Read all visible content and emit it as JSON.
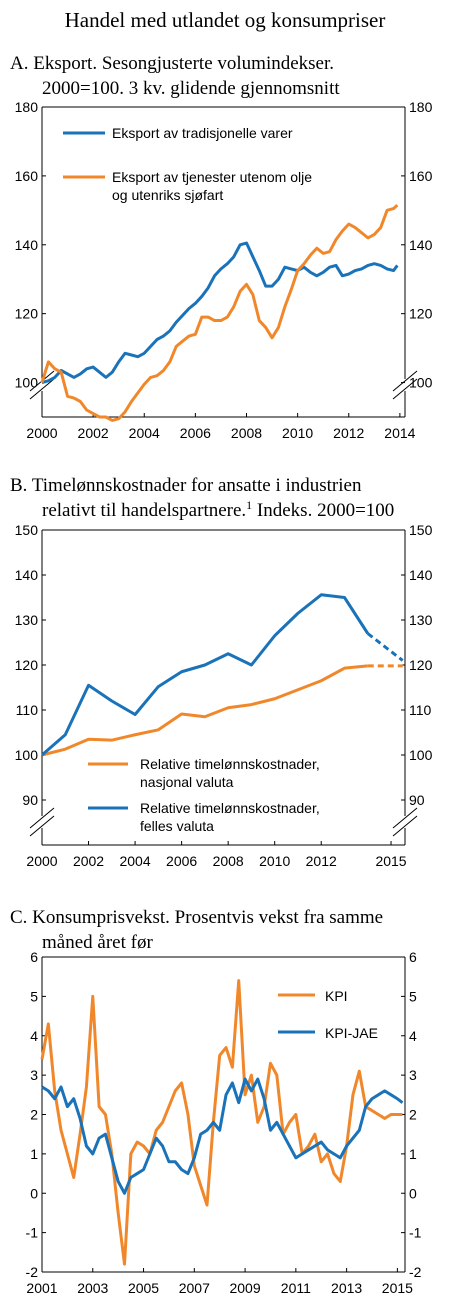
{
  "figure_title": "Handel med utlandet og konsumpriser",
  "colors": {
    "blue": "#1a72b9",
    "orange": "#f0882b"
  },
  "chart_data": [
    {
      "type": "line",
      "title_lines": [
        "A.  Eksport. Sesongjusterte volumindekser.",
        "2000=100. 3 kv. glidende gjennomsnitt"
      ],
      "xlim": [
        2000,
        2014.2
      ],
      "ylim": [
        90,
        180
      ],
      "x_ticks": [
        "2000",
        "2002",
        "2004",
        "2006",
        "2008",
        "2010",
        "2012",
        "2014"
      ],
      "y_ticks": [
        "100",
        "120",
        "140",
        "160",
        "180"
      ],
      "series": [
        {
          "name": "Eksport av tradisjonelle varer",
          "color": "#1a72b9",
          "x": [
            2000.0,
            2000.25,
            2000.5,
            2000.75,
            2001.0,
            2001.25,
            2001.5,
            2001.75,
            2002.0,
            2002.25,
            2002.5,
            2002.75,
            2003.0,
            2003.25,
            2003.5,
            2003.75,
            2004.0,
            2004.25,
            2004.5,
            2004.75,
            2005.0,
            2005.25,
            2005.5,
            2005.75,
            2006.0,
            2006.25,
            2006.5,
            2006.75,
            2007.0,
            2007.25,
            2007.5,
            2007.75,
            2008.0,
            2008.25,
            2008.5,
            2008.75,
            2009.0,
            2009.25,
            2009.5,
            2009.75,
            2010.0,
            2010.25,
            2010.5,
            2010.75,
            2011.0,
            2011.25,
            2011.5,
            2011.75,
            2012.0,
            2012.25,
            2012.5,
            2012.75,
            2013.0,
            2013.25,
            2013.5,
            2013.75,
            2013.9
          ],
          "y": [
            100,
            100.5,
            101.5,
            103.5,
            102.5,
            101.5,
            102.5,
            104,
            104.5,
            103,
            101.5,
            103,
            106,
            108.5,
            108,
            107.5,
            108.5,
            110.5,
            112.5,
            113.5,
            115,
            117.5,
            119.5,
            121.5,
            123,
            125,
            127.5,
            131,
            133,
            134.5,
            136.5,
            140,
            140.5,
            136.5,
            132.5,
            128,
            128,
            130,
            133.5,
            133,
            132.5,
            133.5,
            132,
            131,
            132,
            133.5,
            134,
            131,
            131.5,
            132.5,
            133,
            134,
            134.5,
            134,
            133,
            132.5,
            134
          ]
        },
        {
          "name": "Eksport av tjenester utenom olje og utenriks sjøfart",
          "label_lines": [
            "Eksport av tjenester utenom olje",
            "og utenriks sjøfart"
          ],
          "color": "#f0882b",
          "x": [
            2000.0,
            2000.25,
            2000.5,
            2000.75,
            2001.0,
            2001.25,
            2001.5,
            2001.75,
            2002.0,
            2002.25,
            2002.5,
            2002.75,
            2003.0,
            2003.25,
            2003.5,
            2003.75,
            2004.0,
            2004.25,
            2004.5,
            2004.75,
            2005.0,
            2005.25,
            2005.5,
            2005.75,
            2006.0,
            2006.25,
            2006.5,
            2006.75,
            2007.0,
            2007.25,
            2007.5,
            2007.75,
            2008.0,
            2008.25,
            2008.5,
            2008.75,
            2009.0,
            2009.25,
            2009.5,
            2009.75,
            2010.0,
            2010.25,
            2010.5,
            2010.75,
            2011.0,
            2011.25,
            2011.5,
            2011.75,
            2012.0,
            2012.25,
            2012.5,
            2012.75,
            2013.0,
            2013.25,
            2013.5,
            2013.75,
            2013.9
          ],
          "y": [
            100,
            106,
            104,
            103,
            96,
            95.5,
            94.5,
            92,
            91,
            90,
            90,
            89,
            89.5,
            91.5,
            94.5,
            97,
            99.5,
            101.5,
            102,
            103.5,
            106,
            110.5,
            112,
            113.5,
            114,
            119,
            119,
            118,
            118,
            119,
            122,
            126.5,
            128.5,
            125.5,
            118,
            116,
            113,
            116,
            122,
            127,
            132.5,
            134.5,
            137,
            139,
            137.5,
            138,
            141.5,
            144,
            146,
            145,
            143.5,
            142,
            143,
            145,
            150,
            150.5,
            151.5
          ]
        }
      ]
    },
    {
      "type": "line",
      "title_lines": [
        "B.  Timelønnskostnader for ansatte i industrien",
        "relativt til handelspartnere."
      ],
      "title_footnote": "1",
      "title_tail": " Indeks. 2000=100",
      "xlim": [
        2000,
        2015.6
      ],
      "ylim": [
        80,
        150
      ],
      "x_ticks": [
        "2000",
        "2002",
        "2004",
        "2006",
        "2008",
        "2010",
        "2012",
        "2015"
      ],
      "y_ticks": [
        "90",
        "100",
        "110",
        "120",
        "130",
        "140",
        "150"
      ],
      "series": [
        {
          "name": "Relative timelønnskostnader, nasjonal valuta",
          "label_lines": [
            "Relative timelønnskostnader,",
            "nasjonal valuta"
          ],
          "color": "#f0882b",
          "x": [
            2000,
            2001,
            2002,
            2003,
            2004,
            2005,
            2006,
            2007,
            2008,
            2009,
            2010,
            2011,
            2012,
            2013,
            2014,
            2014.5,
            2015.5
          ],
          "y": [
            100,
            101.3,
            103.5,
            103.3,
            104.5,
            105.6,
            109.1,
            108.5,
            110.5,
            111.2,
            112.5,
            114.5,
            116.5,
            119.3,
            119.8,
            119.8,
            119.8
          ],
          "forecast_from_index": 14
        },
        {
          "name": "Relative timelønnskostnader, felles valuta",
          "label_lines": [
            "Relative timelønnskostnader,",
            "felles valuta"
          ],
          "color": "#1a72b9",
          "x": [
            2000,
            2001,
            2002,
            2003,
            2004,
            2005,
            2006,
            2007,
            2008,
            2009,
            2010,
            2011,
            2012,
            2013,
            2014,
            2015.5
          ],
          "y": [
            100,
            104.5,
            115.5,
            112,
            109,
            115.2,
            118.5,
            120,
            122.5,
            120,
            126.5,
            131.5,
            135.6,
            135,
            127,
            121
          ],
          "forecast_from_index": 14
        }
      ]
    },
    {
      "type": "line",
      "title_lines": [
        "C.  Konsumprisvekst. Prosentvis vekst fra samme",
        "måned året før"
      ],
      "xlim": [
        2001,
        2015.3
      ],
      "ylim": [
        -2,
        6
      ],
      "x_ticks": [
        "2001",
        "2003",
        "2005",
        "2007",
        "2009",
        "2011",
        "2013",
        "2015"
      ],
      "y_ticks": [
        "-2",
        "-1",
        "0",
        "1",
        "2",
        "3",
        "4",
        "5",
        "6"
      ],
      "series": [
        {
          "name": "KPI",
          "color": "#f0882b",
          "x": [
            2001.0,
            2001.25,
            2001.5,
            2001.75,
            2002.0,
            2002.25,
            2002.5,
            2002.75,
            2003.0,
            2003.25,
            2003.5,
            2003.75,
            2004.0,
            2004.25,
            2004.5,
            2004.75,
            2005.0,
            2005.25,
            2005.5,
            2005.75,
            2006.0,
            2006.25,
            2006.5,
            2006.75,
            2007.0,
            2007.25,
            2007.5,
            2007.75,
            2008.0,
            2008.25,
            2008.5,
            2008.75,
            2009.0,
            2009.25,
            2009.5,
            2009.75,
            2010.0,
            2010.25,
            2010.5,
            2010.75,
            2011.0,
            2011.25,
            2011.5,
            2011.75,
            2012.0,
            2012.25,
            2012.5,
            2012.75,
            2013.0,
            2013.25,
            2013.5,
            2013.75,
            2014.0,
            2014.25,
            2014.5,
            2014.75,
            2015.0,
            2015.2
          ],
          "y": [
            3.4,
            4.3,
            2.6,
            1.6,
            1.0,
            0.4,
            1.5,
            2.7,
            5.0,
            2.2,
            2.0,
            1.0,
            -0.5,
            -1.8,
            1.0,
            1.3,
            1.2,
            1.0,
            1.6,
            1.8,
            2.2,
            2.6,
            2.8,
            2.0,
            0.7,
            0.2,
            -0.3,
            1.8,
            3.5,
            3.7,
            3.2,
            5.4,
            2.5,
            3.0,
            1.8,
            2.2,
            3.3,
            3.0,
            1.5,
            1.8,
            2.0,
            1.0,
            1.2,
            1.5,
            0.8,
            1.0,
            0.5,
            0.3,
            1.2,
            2.5,
            3.1,
            2.2,
            2.1,
            2.0,
            1.9,
            2.0,
            2.0,
            2.0
          ]
        },
        {
          "name": "KPI-JAE",
          "color": "#1a72b9",
          "x": [
            2001.0,
            2001.25,
            2001.5,
            2001.75,
            2002.0,
            2002.25,
            2002.5,
            2002.75,
            2003.0,
            2003.25,
            2003.5,
            2003.75,
            2004.0,
            2004.25,
            2004.5,
            2004.75,
            2005.0,
            2005.25,
            2005.5,
            2005.75,
            2006.0,
            2006.25,
            2006.5,
            2006.75,
            2007.0,
            2007.25,
            2007.5,
            2007.75,
            2008.0,
            2008.25,
            2008.5,
            2008.75,
            2009.0,
            2009.25,
            2009.5,
            2009.75,
            2010.0,
            2010.25,
            2010.5,
            2010.75,
            2011.0,
            2011.25,
            2011.5,
            2011.75,
            2012.0,
            2012.25,
            2012.5,
            2012.75,
            2013.0,
            2013.25,
            2013.5,
            2013.75,
            2014.0,
            2014.25,
            2014.5,
            2014.75,
            2015.0,
            2015.2
          ],
          "y": [
            2.7,
            2.6,
            2.4,
            2.7,
            2.2,
            2.4,
            1.9,
            1.2,
            1.0,
            1.4,
            1.5,
            0.9,
            0.3,
            0.0,
            0.4,
            0.5,
            0.6,
            1.0,
            1.4,
            1.2,
            0.8,
            0.8,
            0.6,
            0.5,
            0.9,
            1.5,
            1.6,
            1.8,
            1.6,
            2.5,
            2.8,
            2.3,
            2.9,
            2.6,
            2.9,
            2.4,
            1.6,
            1.8,
            1.5,
            1.2,
            0.9,
            1.0,
            1.1,
            1.2,
            1.3,
            1.1,
            1.0,
            0.9,
            1.2,
            1.4,
            1.6,
            2.2,
            2.4,
            2.5,
            2.6,
            2.5,
            2.4,
            2.3
          ]
        }
      ]
    }
  ]
}
